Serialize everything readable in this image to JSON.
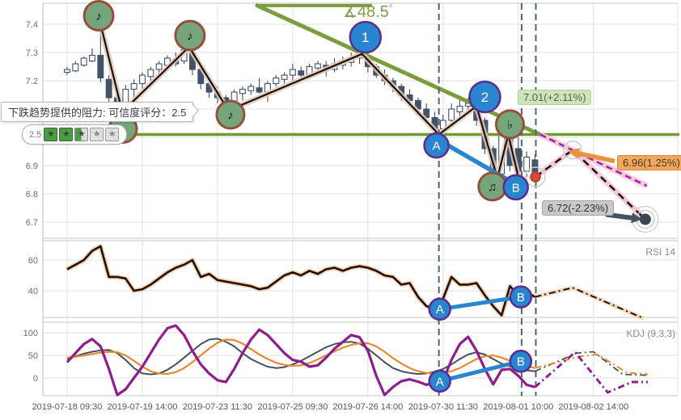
{
  "ui": {
    "tooltip": {
      "text": "下跌趋势提供的阻力: 可信度评分：2.5"
    },
    "rating": {
      "score": "2.5",
      "star_glyph": "★",
      "stars": [
        "full",
        "full",
        "half",
        "off",
        "off"
      ]
    },
    "angle": {
      "label": "∡48.5",
      "unit": "°"
    },
    "price_tags": {
      "up": "7.01(+2.11%)",
      "mid": "6.96(1.25%)",
      "down": "6.72(-2.23%)"
    },
    "panel_titles": {
      "rsi": "RSI 14",
      "kdj": "KDJ (9,3,3)"
    }
  },
  "colors": {
    "grid": "#e0e0e0",
    "border": "#c6c6c6",
    "axis_text": "#6e6e6e",
    "xlabel_text": "#555555",
    "candle": "#42526b",
    "candle_up_fill": "#ffffff",
    "zigzag": "#141414",
    "zigzag_glow": "#e9c8b4",
    "trend_green": "#7a9e3b",
    "resistance_green": "#6f9a2f",
    "vline": "#4f6672",
    "blue": "#2a85d0",
    "purple_ring": "#5b2d8e",
    "note_fill": "#76a57c",
    "note_ring": "#94503e",
    "note_glyph": "#111111",
    "magenta": "#8e24aa",
    "pink_glow": "#f8c0d4",
    "black_dash": "#111111",
    "orange_arrow": "#e8943c",
    "dark_arrow": "#46525c",
    "red_dot": "#d14b38",
    "dark_dot": "#3a4750",
    "halo": "#c9ced4",
    "rsi_line": "#201008",
    "rsi_glow": "#f0cda6",
    "kdj_k": "#44525a",
    "kdj_d": "#e8892e",
    "kdj_j": "#8e1d8e"
  },
  "chart_data": [
    {
      "id": "price",
      "type": "candlestick",
      "x_labels": [
        "2019-07-18 09:30",
        "2019-07-19 14:00",
        "2019-07-23 11:30",
        "2019-07-25 09:30",
        "2019-07-26 14:00",
        "2019-07-30 11:30",
        "2019-08-01 10:00",
        "2019-08-02 14:00"
      ],
      "yticks": [
        7.4,
        7.3,
        7.2,
        7.1,
        7.0,
        6.9,
        6.8,
        6.7
      ],
      "ylim": [
        6.67,
        7.47
      ],
      "candles": [
        [
          7.23,
          7.25,
          7.22,
          7.24
        ],
        [
          7.235,
          7.27,
          7.23,
          7.26
        ],
        [
          7.255,
          7.285,
          7.25,
          7.28
        ],
        [
          7.27,
          7.315,
          7.265,
          7.29
        ],
        [
          7.29,
          7.4,
          7.195,
          7.21
        ],
        [
          7.205,
          7.22,
          7.115,
          7.14
        ],
        [
          7.14,
          7.16,
          7.09,
          7.1
        ],
        [
          7.1,
          7.185,
          7.095,
          7.17
        ],
        [
          7.17,
          7.205,
          7.13,
          7.19
        ],
        [
          7.19,
          7.23,
          7.17,
          7.22
        ],
        [
          7.215,
          7.25,
          7.2,
          7.24
        ],
        [
          7.24,
          7.27,
          7.22,
          7.26
        ],
        [
          7.255,
          7.29,
          7.25,
          7.28
        ],
        [
          7.275,
          7.3,
          7.25,
          7.26
        ],
        [
          7.27,
          7.34,
          7.26,
          7.31
        ],
        [
          7.3,
          7.31,
          7.22,
          7.24
        ],
        [
          7.24,
          7.25,
          7.17,
          7.19
        ],
        [
          7.19,
          7.205,
          7.14,
          7.16
        ],
        [
          7.16,
          7.18,
          7.12,
          7.14
        ],
        [
          7.14,
          7.15,
          7.09,
          7.11
        ],
        [
          7.11,
          7.17,
          7.1,
          7.16
        ],
        [
          7.155,
          7.18,
          7.13,
          7.17
        ],
        [
          7.165,
          7.19,
          7.15,
          7.18
        ],
        [
          7.175,
          7.21,
          7.155,
          7.16
        ],
        [
          7.16,
          7.2,
          7.125,
          7.19
        ],
        [
          7.19,
          7.22,
          7.18,
          7.21
        ],
        [
          7.205,
          7.23,
          7.19,
          7.22
        ],
        [
          7.22,
          7.26,
          7.195,
          7.24
        ],
        [
          7.235,
          7.25,
          7.21,
          7.22
        ],
        [
          7.22,
          7.26,
          7.21,
          7.25
        ],
        [
          7.245,
          7.27,
          7.23,
          7.26
        ],
        [
          7.255,
          7.27,
          7.215,
          7.24
        ],
        [
          7.24,
          7.28,
          7.23,
          7.26
        ],
        [
          7.255,
          7.285,
          7.24,
          7.27
        ],
        [
          7.265,
          7.3,
          7.25,
          7.28
        ],
        [
          7.28,
          7.315,
          7.26,
          7.29
        ],
        [
          7.29,
          7.3,
          7.23,
          7.25
        ],
        [
          7.25,
          7.26,
          7.21,
          7.22
        ],
        [
          7.22,
          7.24,
          7.185,
          7.2
        ],
        [
          7.2,
          7.21,
          7.16,
          7.18
        ],
        [
          7.18,
          7.19,
          7.13,
          7.15
        ],
        [
          7.15,
          7.17,
          7.11,
          7.13
        ],
        [
          7.13,
          7.14,
          7.08,
          7.1
        ],
        [
          7.1,
          7.12,
          7.05,
          7.07
        ],
        [
          7.07,
          7.09,
          7.005,
          7.03
        ],
        [
          7.03,
          7.08,
          7.02,
          7.06
        ],
        [
          7.06,
          7.12,
          7.04,
          7.1
        ],
        [
          7.09,
          7.135,
          7.06,
          7.11
        ],
        [
          7.11,
          7.14,
          7.09,
          7.12
        ],
        [
          7.12,
          7.13,
          7.04,
          7.06
        ],
        [
          7.06,
          7.07,
          6.94,
          6.96
        ],
        [
          6.96,
          6.97,
          6.85,
          6.87
        ],
        [
          6.87,
          7.05,
          6.86,
          7.03
        ],
        [
          7.03,
          7.04,
          6.88,
          6.9
        ],
        [
          6.96,
          7.0,
          6.86,
          6.88
        ],
        [
          6.88,
          6.95,
          6.86,
          6.93
        ],
        [
          6.92,
          6.94,
          6.85,
          6.87
        ]
      ],
      "zigzag": [
        [
          4,
          7.4
        ],
        [
          6.6,
          7.09
        ],
        [
          14.6,
          7.32
        ],
        [
          19.3,
          7.095
        ],
        [
          35.3,
          7.295
        ],
        [
          44.5,
          7.01
        ],
        [
          49,
          7.11
        ],
        [
          51.5,
          6.855
        ],
        [
          52.8,
          7.01
        ],
        [
          54,
          6.86
        ]
      ],
      "trendline": {
        "from": [
          22.75,
          7.466
        ],
        "to": [
          56.6,
          7.01
        ],
        "angle_deg": 48.5
      },
      "trendline_top": {
        "price": 7.466,
        "from_i": 22.75,
        "to_i": 36.5
      },
      "resistance_level": 7.01,
      "vlines_i": [
        44.5,
        54.4,
        56.1
      ],
      "ab_line": [
        [
          44.5,
          6.99
        ],
        [
          53.9,
          6.83
        ]
      ],
      "projection_main": [
        [
          56.05,
          6.86
        ],
        [
          60.5,
          6.955
        ],
        [
          69.2,
          6.71
        ]
      ],
      "projection_trend": [
        [
          56.6,
          7.01
        ],
        [
          69.4,
          6.828
        ]
      ],
      "key_points": {
        "last": [
          56.05,
          6.86
        ],
        "mid": [
          60.5,
          6.955
        ],
        "end": [
          69.2,
          6.71
        ]
      },
      "markers": [
        {
          "kind": "note",
          "label": "♪",
          "i": 3.78,
          "price": 7.43,
          "r": 18
        },
        {
          "kind": "note",
          "label": "♪",
          "i": 6.68,
          "price": 7.03,
          "r": 17
        },
        {
          "kind": "note",
          "label": "♪",
          "i": 14.7,
          "price": 7.36,
          "r": 18
        },
        {
          "kind": "note",
          "label": "♪",
          "i": 19.55,
          "price": 7.08,
          "r": 17
        },
        {
          "kind": "note",
          "label": "♫",
          "i": 50.9,
          "price": 6.826,
          "r": 17
        },
        {
          "kind": "note",
          "label": "♭",
          "i": 53.0,
          "price": 7.046,
          "r": 17
        },
        {
          "kind": "num",
          "label": "1",
          "i": 35.7,
          "price": 7.354,
          "r": 19
        },
        {
          "kind": "num",
          "label": "2",
          "i": 50.0,
          "price": 7.143,
          "r": 19
        },
        {
          "kind": "ab",
          "label": "A",
          "i": 44.2,
          "price": 6.971,
          "r": 15
        },
        {
          "kind": "ab",
          "label": "B",
          "i": 53.7,
          "price": 6.823,
          "r": 15
        }
      ]
    },
    {
      "id": "rsi",
      "type": "line",
      "title": "RSI 14",
      "yticks": [
        60,
        40
      ],
      "values": [
        54,
        57,
        60,
        66,
        69,
        49,
        49,
        48,
        40,
        41,
        44,
        48,
        52,
        55,
        57,
        60,
        49,
        51,
        47,
        46,
        45,
        44,
        43,
        41,
        42,
        46,
        50,
        52,
        50,
        53,
        51,
        54,
        55,
        53,
        55,
        56,
        55,
        53,
        50,
        49,
        44,
        45,
        36,
        30,
        28,
        35,
        49,
        44,
        44,
        45,
        37,
        30,
        24,
        43,
        37,
        39,
        36
      ],
      "projection": [
        [
          56,
          36
        ],
        [
          60.5,
          42
        ],
        [
          69,
          22
        ]
      ],
      "ab_line": [
        [
          44.6,
          28
        ],
        [
          54.3,
          36
        ]
      ],
      "markers": [
        {
          "label": "A",
          "i": 44.6,
          "value": 28,
          "r": 13
        },
        {
          "label": "B",
          "i": 54.3,
          "value": 36,
          "r": 13
        }
      ]
    },
    {
      "id": "kdj",
      "type": "line",
      "title": "KDJ (9,3,3)",
      "yticks": [
        100,
        50,
        0
      ],
      "series": [
        {
          "name": "K",
          "values": [
            42,
            48,
            54,
            58,
            61,
            62,
            55,
            40,
            22,
            10,
            8,
            10,
            18,
            30,
            45,
            60,
            75,
            85,
            87,
            80,
            70,
            55,
            42,
            33,
            25,
            22,
            24,
            30,
            38,
            48,
            58,
            68,
            75,
            79,
            80,
            76,
            65,
            50,
            35,
            22,
            15,
            11,
            9,
            10,
            14,
            20,
            30,
            42,
            52,
            57,
            52,
            42,
            32,
            26,
            22,
            17,
            15
          ]
        },
        {
          "name": "D",
          "values": [
            45,
            47,
            50,
            53,
            56,
            58,
            57,
            50,
            38,
            25,
            15,
            10,
            9,
            13,
            22,
            35,
            50,
            65,
            78,
            85,
            84,
            76,
            64,
            52,
            42,
            34,
            29,
            27,
            28,
            33,
            41,
            50,
            59,
            67,
            73,
            77,
            77,
            70,
            58,
            44,
            32,
            22,
            15,
            11,
            10,
            11,
            15,
            22,
            32,
            42,
            48,
            50,
            45,
            38,
            31,
            26,
            22
          ]
        },
        {
          "name": "J",
          "values": [
            35,
            55,
            75,
            86,
            70,
            20,
            -43,
            -25,
            0,
            25,
            55,
            85,
            110,
            116,
            95,
            60,
            30,
            10,
            -5,
            -9,
            20,
            55,
            85,
            107,
            95,
            75,
            55,
            40,
            36,
            25,
            28,
            45,
            65,
            80,
            95,
            90,
            60,
            5,
            -39,
            -20,
            -7,
            -3,
            -8,
            -15,
            -10,
            -5,
            40,
            75,
            91,
            60,
            20,
            -14,
            18,
            20,
            5,
            -15,
            -20
          ]
        }
      ],
      "projections": [
        {
          "name": "K",
          "points": [
            [
              56,
              15
            ],
            [
              61,
              55
            ],
            [
              63,
              58
            ],
            [
              66.5,
              8
            ],
            [
              69.5,
              6
            ]
          ]
        },
        {
          "name": "D",
          "points": [
            [
              56,
              22
            ],
            [
              61.5,
              48
            ],
            [
              63.5,
              52
            ],
            [
              67,
              12
            ],
            [
              69.5,
              8
            ]
          ]
        },
        {
          "name": "J",
          "points": [
            [
              56,
              -20
            ],
            [
              60.8,
              57
            ],
            [
              64.7,
              -32
            ],
            [
              67.6,
              -9
            ],
            [
              69.5,
              -9
            ]
          ]
        }
      ],
      "ab_line": [
        [
          44.6,
          -7
        ],
        [
          54.3,
          37
        ]
      ],
      "markers": [
        {
          "label": "A",
          "i": 44.6,
          "value": -7,
          "r": 13
        },
        {
          "label": "B",
          "i": 54.3,
          "value": 37,
          "r": 13
        }
      ]
    }
  ]
}
